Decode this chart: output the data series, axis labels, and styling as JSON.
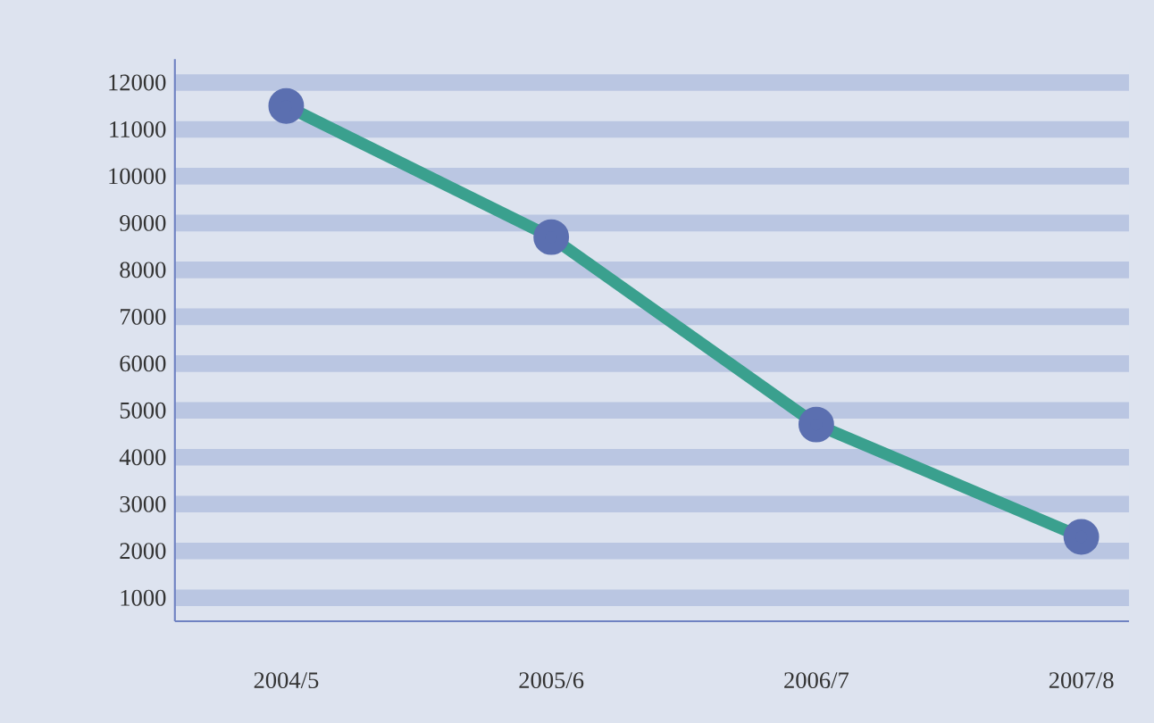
{
  "chart_data": {
    "type": "line",
    "categories": [
      "2004/5",
      "2005/6",
      "2006/7",
      "2007/8"
    ],
    "series": [
      {
        "color": "#3aa08e",
        "values": [
          11500,
          8700,
          4700,
          2300
        ]
      }
    ],
    "ylim": [
      500,
      12500
    ],
    "yticks": [
      1000,
      2000,
      3000,
      4000,
      5000,
      6000,
      7000,
      8000,
      9000,
      10000,
      11000,
      12000
    ],
    "grid": "y",
    "marker": "circle"
  }
}
